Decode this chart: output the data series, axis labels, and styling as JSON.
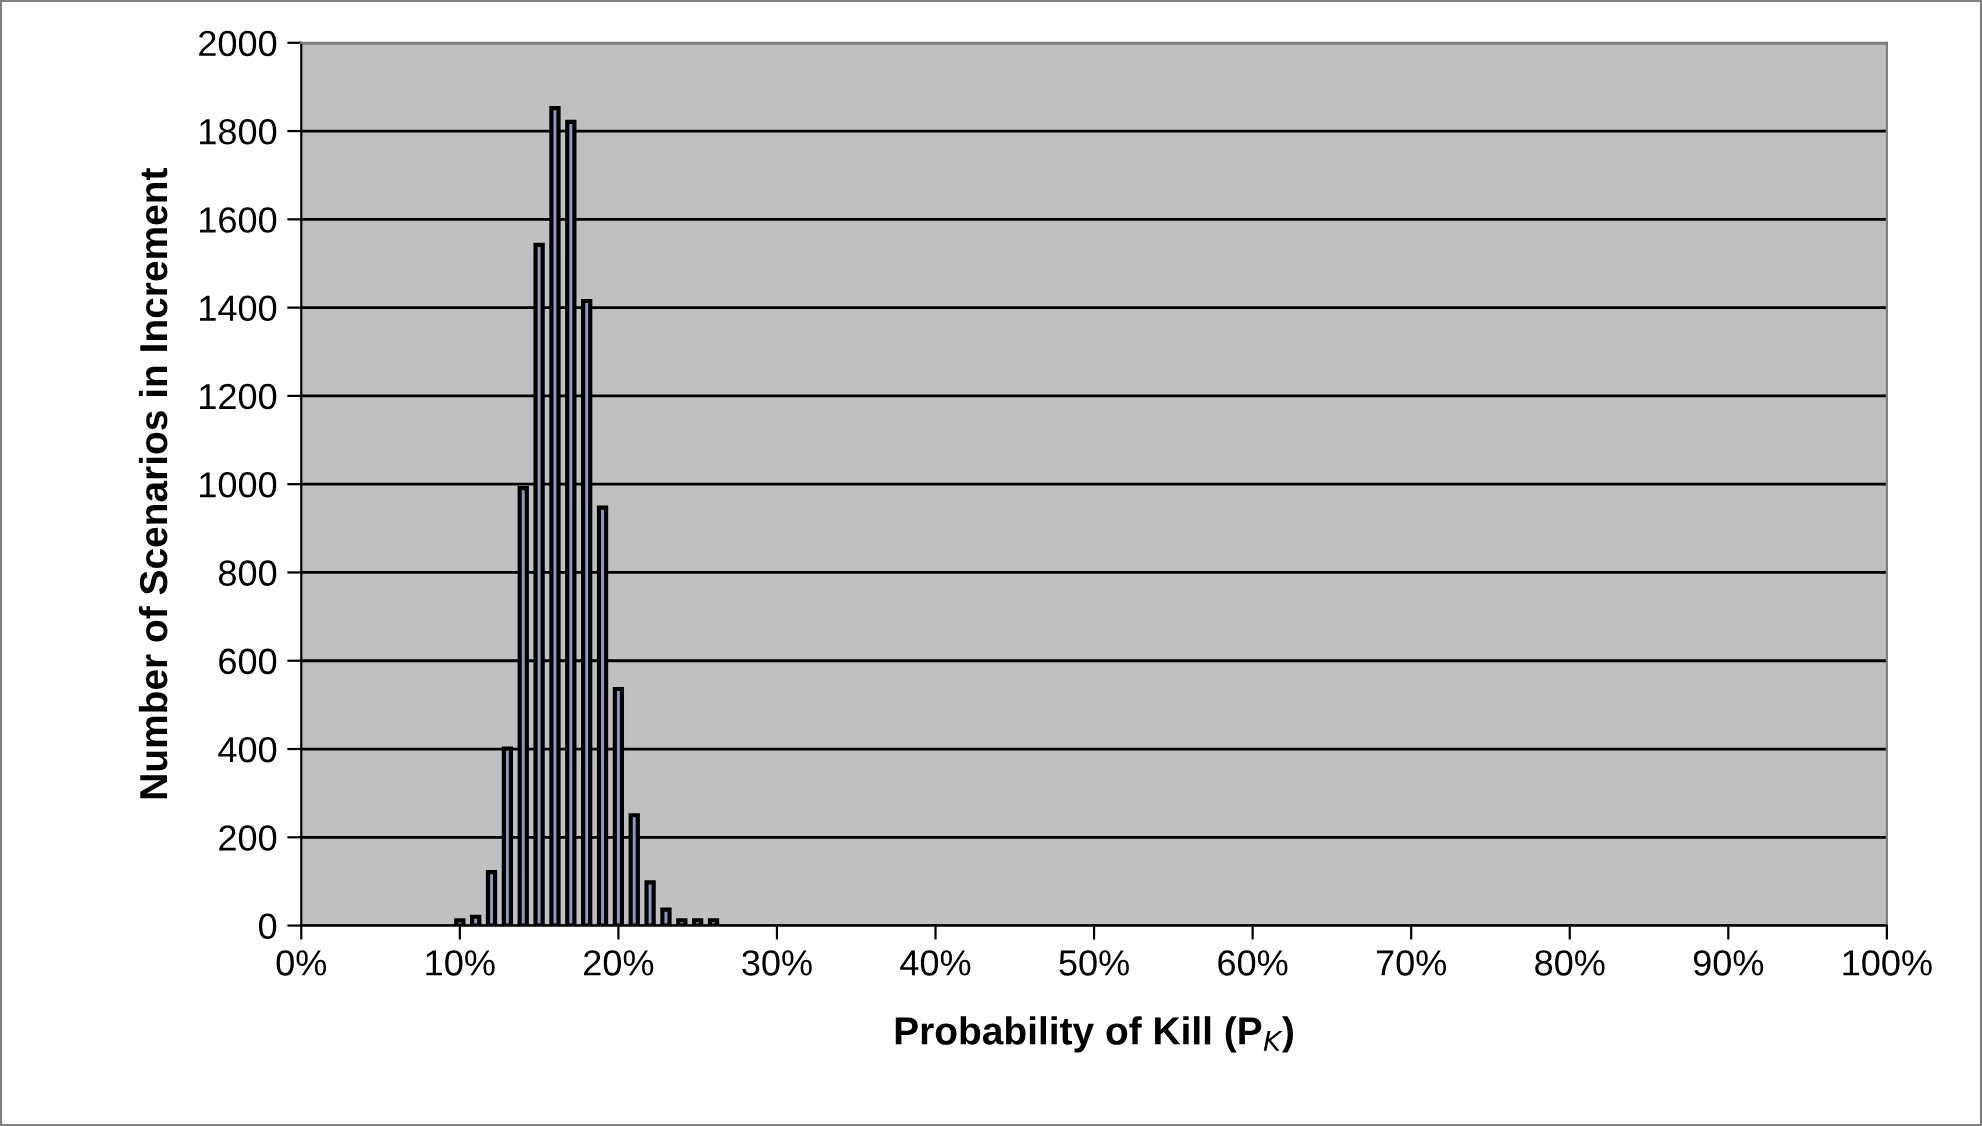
{
  "chart_data": {
    "type": "bar",
    "xlabel": "Probability of Kill (P$_{K}$)",
    "ylabel": "Number of Scenarios in Increment",
    "x": [
      10,
      11,
      12,
      13,
      14,
      15,
      16,
      17,
      18,
      19,
      20,
      21,
      22,
      23,
      24,
      25,
      26
    ],
    "series": [
      {
        "color": "#8a9ab8",
        "values": [
          12,
          20,
          121,
          401,
          991,
          1542,
          1852,
          1821,
          1415,
          947,
          536,
          250,
          98,
          36,
          12,
          12,
          12
        ]
      }
    ],
    "xlim": [
      0,
      100
    ],
    "xticks": [
      {
        "value": 0,
        "label": "0%"
      },
      {
        "value": 10,
        "label": "10%"
      },
      {
        "value": 20,
        "label": "20%"
      },
      {
        "value": 30,
        "label": "30%"
      },
      {
        "value": 40,
        "label": "40%"
      },
      {
        "value": 50,
        "label": "50%"
      },
      {
        "value": 60,
        "label": "60%"
      },
      {
        "value": 70,
        "label": "70%"
      },
      {
        "value": 80,
        "label": "80%"
      },
      {
        "value": 90,
        "label": "90%"
      },
      {
        "value": 100,
        "label": "100%"
      }
    ],
    "ylim": [
      0,
      2000
    ],
    "yticks": [
      0,
      200,
      400,
      600,
      800,
      1000,
      1200,
      1400,
      1600,
      1800,
      2000
    ],
    "grid": "y"
  }
}
